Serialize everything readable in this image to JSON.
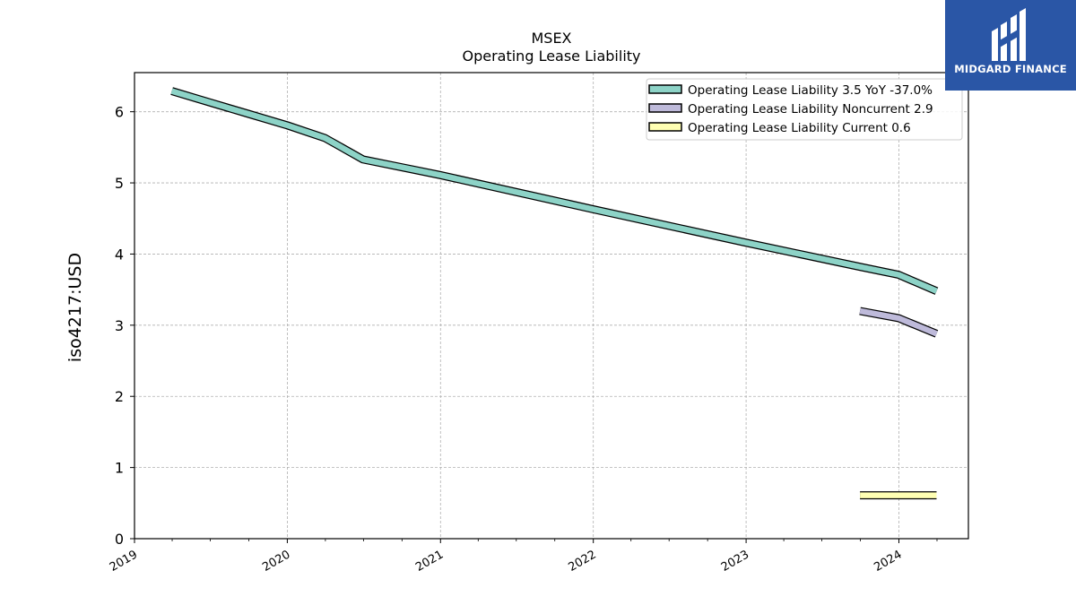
{
  "chart_data": {
    "type": "line",
    "title": "MSEX",
    "subtitle": "Operating Lease Liability",
    "ylabel": "iso4217:USD",
    "xlabel": "",
    "ylim": [
      0,
      6.55
    ],
    "xlim": [
      "2019-01-01",
      "2024-06-15"
    ],
    "yticks": [
      "0",
      "1",
      "2",
      "3",
      "4",
      "5",
      "6"
    ],
    "xticks": [
      "2019",
      "2020",
      "2021",
      "2022",
      "2023",
      "2024"
    ],
    "grid": true,
    "legend_position": "top-right",
    "series": [
      {
        "name": "Operating Lease Liability",
        "legend_label": "Operating Lease Liability  3.5 YoY -37.0%",
        "color": "#8dd3c7",
        "points": [
          [
            "2019-03-31",
            6.29
          ],
          [
            "2019-06-30",
            6.13
          ],
          [
            "2019-09-30",
            5.97
          ],
          [
            "2019-12-31",
            5.81
          ],
          [
            "2020-03-31",
            5.63
          ],
          [
            "2020-06-30",
            5.33
          ],
          [
            "2020-09-30",
            5.22
          ],
          [
            "2020-12-31",
            5.11
          ],
          [
            "2021-12-31",
            4.63
          ],
          [
            "2022-12-31",
            4.16
          ],
          [
            "2023-09-30",
            3.82
          ],
          [
            "2023-12-31",
            3.71
          ],
          [
            "2024-03-31",
            3.48
          ]
        ]
      },
      {
        "name": "Operating Lease Liability Noncurrent",
        "legend_label": "Operating Lease Liability Noncurrent  2.9",
        "color": "#bebada",
        "points": [
          [
            "2023-09-30",
            3.2
          ],
          [
            "2023-12-31",
            3.1
          ],
          [
            "2024-03-31",
            2.88
          ]
        ]
      },
      {
        "name": "Operating Lease Liability Current",
        "legend_label": "Operating Lease Liability Current  0.6",
        "color": "#ffffb3",
        "points": [
          [
            "2023-09-30",
            0.61
          ],
          [
            "2023-12-31",
            0.61
          ],
          [
            "2024-03-31",
            0.61
          ]
        ]
      }
    ]
  },
  "logo": {
    "text": "MIDGARD FINANCE",
    "background": "#2a56a6"
  }
}
